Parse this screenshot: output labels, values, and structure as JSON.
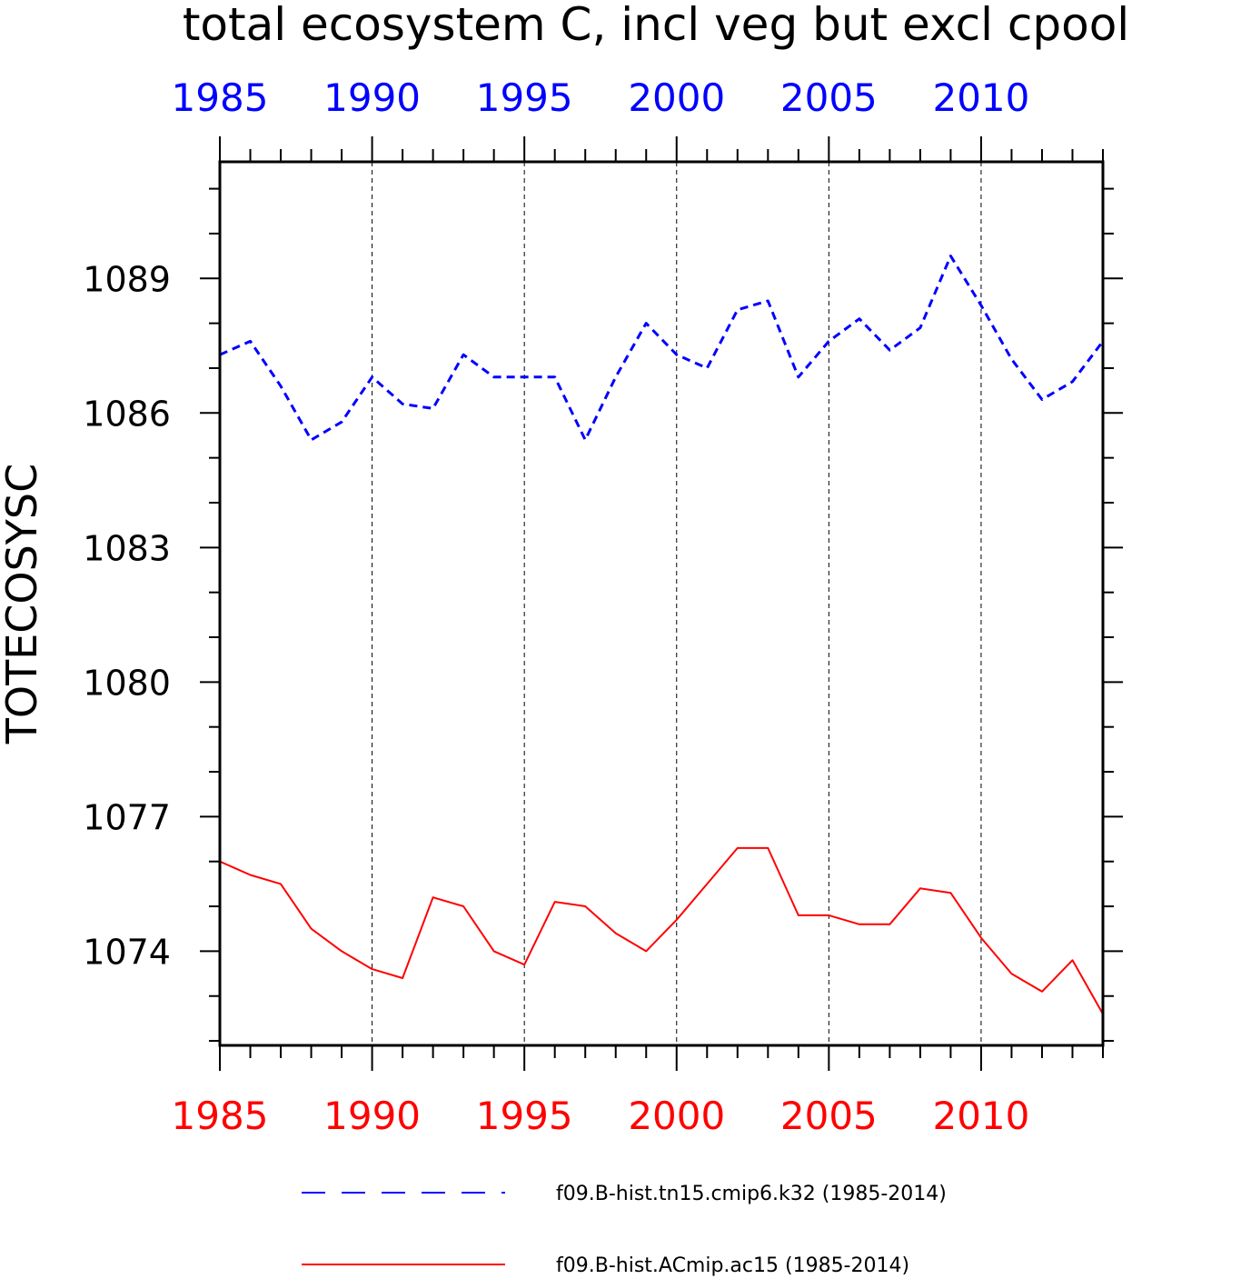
{
  "chart_data": {
    "type": "line",
    "title": "total ecosystem C, incl veg but excl cpool",
    "ylabel": "TOTECOSYSC",
    "xlabel": "",
    "xlim": [
      1985,
      2014
    ],
    "ylim": [
      1071.9,
      1091.6
    ],
    "x_ticks": [
      1985,
      1990,
      1995,
      2000,
      2005,
      2010
    ],
    "y_ticks": [
      1074,
      1077,
      1080,
      1083,
      1086,
      1089
    ],
    "top_axis_color": "#0000ff",
    "bottom_axis_color": "#ff0000",
    "vertical_grid": "dashed at major x ticks",
    "legend_position": "bottom",
    "x": [
      1985,
      1986,
      1987,
      1988,
      1989,
      1990,
      1991,
      1992,
      1993,
      1994,
      1995,
      1996,
      1997,
      1998,
      1999,
      2000,
      2001,
      2002,
      2003,
      2004,
      2005,
      2006,
      2007,
      2008,
      2009,
      2010,
      2011,
      2012,
      2013,
      2014
    ],
    "series": [
      {
        "name": "f09.B-hist.tn15.cmip6.k32 (1985-2014)",
        "color": "#0000ff",
        "dash": "dashed",
        "values": [
          1087.3,
          1087.6,
          1086.6,
          1085.4,
          1085.8,
          1086.8,
          1086.2,
          1086.1,
          1087.3,
          1086.8,
          1086.8,
          1086.8,
          1085.4,
          1086.8,
          1088.0,
          1087.3,
          1087.0,
          1088.3,
          1088.5,
          1086.8,
          1087.6,
          1088.1,
          1087.4,
          1087.9,
          1089.5,
          1088.4,
          1087.2,
          1086.3,
          1086.7,
          1087.6
        ]
      },
      {
        "name": "f09.B-hist.ACmip.ac15 (1985-2014)",
        "color": "#ff0000",
        "dash": "solid",
        "values": [
          1076.0,
          1075.7,
          1075.5,
          1074.5,
          1074.0,
          1073.6,
          1073.4,
          1075.2,
          1075.0,
          1074.0,
          1073.7,
          1075.1,
          1075.0,
          1074.4,
          1074.0,
          1074.7,
          1075.5,
          1076.3,
          1076.3,
          1074.8,
          1074.8,
          1074.6,
          1074.6,
          1075.4,
          1075.3,
          1074.3,
          1073.5,
          1073.1,
          1073.8,
          1072.6
        ]
      }
    ]
  }
}
